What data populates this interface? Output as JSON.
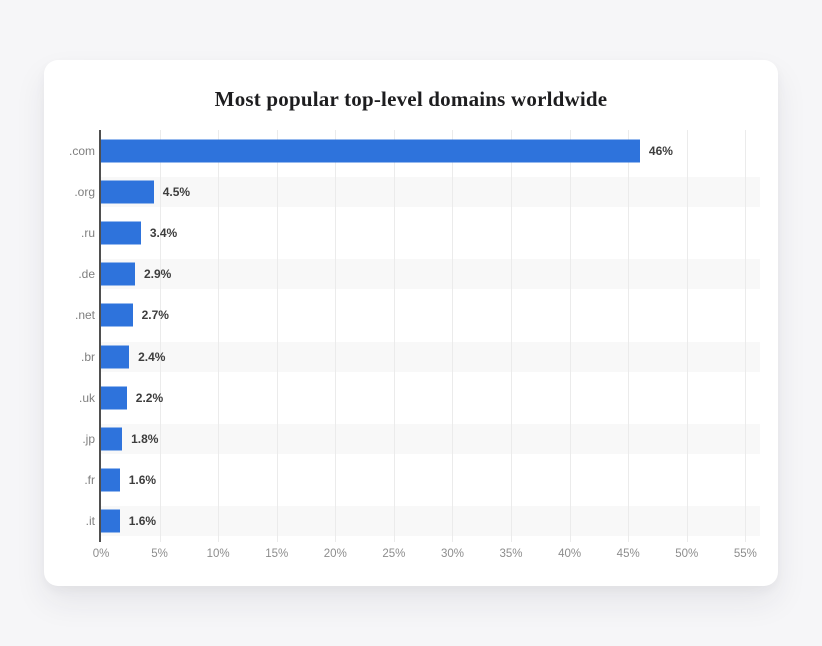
{
  "card": {
    "title": "Most popular top-level domains worldwide"
  },
  "chart_data": {
    "type": "bar",
    "orientation": "horizontal",
    "title": "Most popular top-level domains worldwide",
    "categories": [
      ".com",
      ".org",
      ".ru",
      ".de",
      ".net",
      ".br",
      ".uk",
      ".jp",
      ".fr",
      ".it"
    ],
    "values": [
      46,
      4.5,
      3.4,
      2.9,
      2.7,
      2.4,
      2.2,
      1.8,
      1.6,
      1.6
    ],
    "value_labels": [
      "46%",
      "4.5%",
      "3.4%",
      "2.9%",
      "2.7%",
      "2.4%",
      "2.2%",
      "1.8%",
      "1.6%",
      "1.6%"
    ],
    "xlabel": "",
    "ylabel": "",
    "xlim": [
      0,
      56.25
    ],
    "x_ticks": [
      0,
      5,
      10,
      15,
      20,
      25,
      30,
      35,
      40,
      45,
      50,
      55
    ],
    "x_tick_labels": [
      "0%",
      "5%",
      "10%",
      "15%",
      "20%",
      "25%",
      "30%",
      "35%",
      "40%",
      "45%",
      "50%",
      "55%"
    ],
    "grid": "vertical-only",
    "legend": "none",
    "row_striping": "alternate-odd-rows",
    "colors": {
      "bar": "#2e73dc",
      "stripe": "#f8f8f8",
      "axis_line": "#4f4f4f",
      "gridline": "#ebebeb",
      "category_label": "#7f7f7f",
      "value_label": "#3d3d3d",
      "tick_label": "#8d8d8d",
      "title": "#1d1d1f",
      "card_background": "#ffffff",
      "page_background": "#f6f6f8"
    }
  }
}
